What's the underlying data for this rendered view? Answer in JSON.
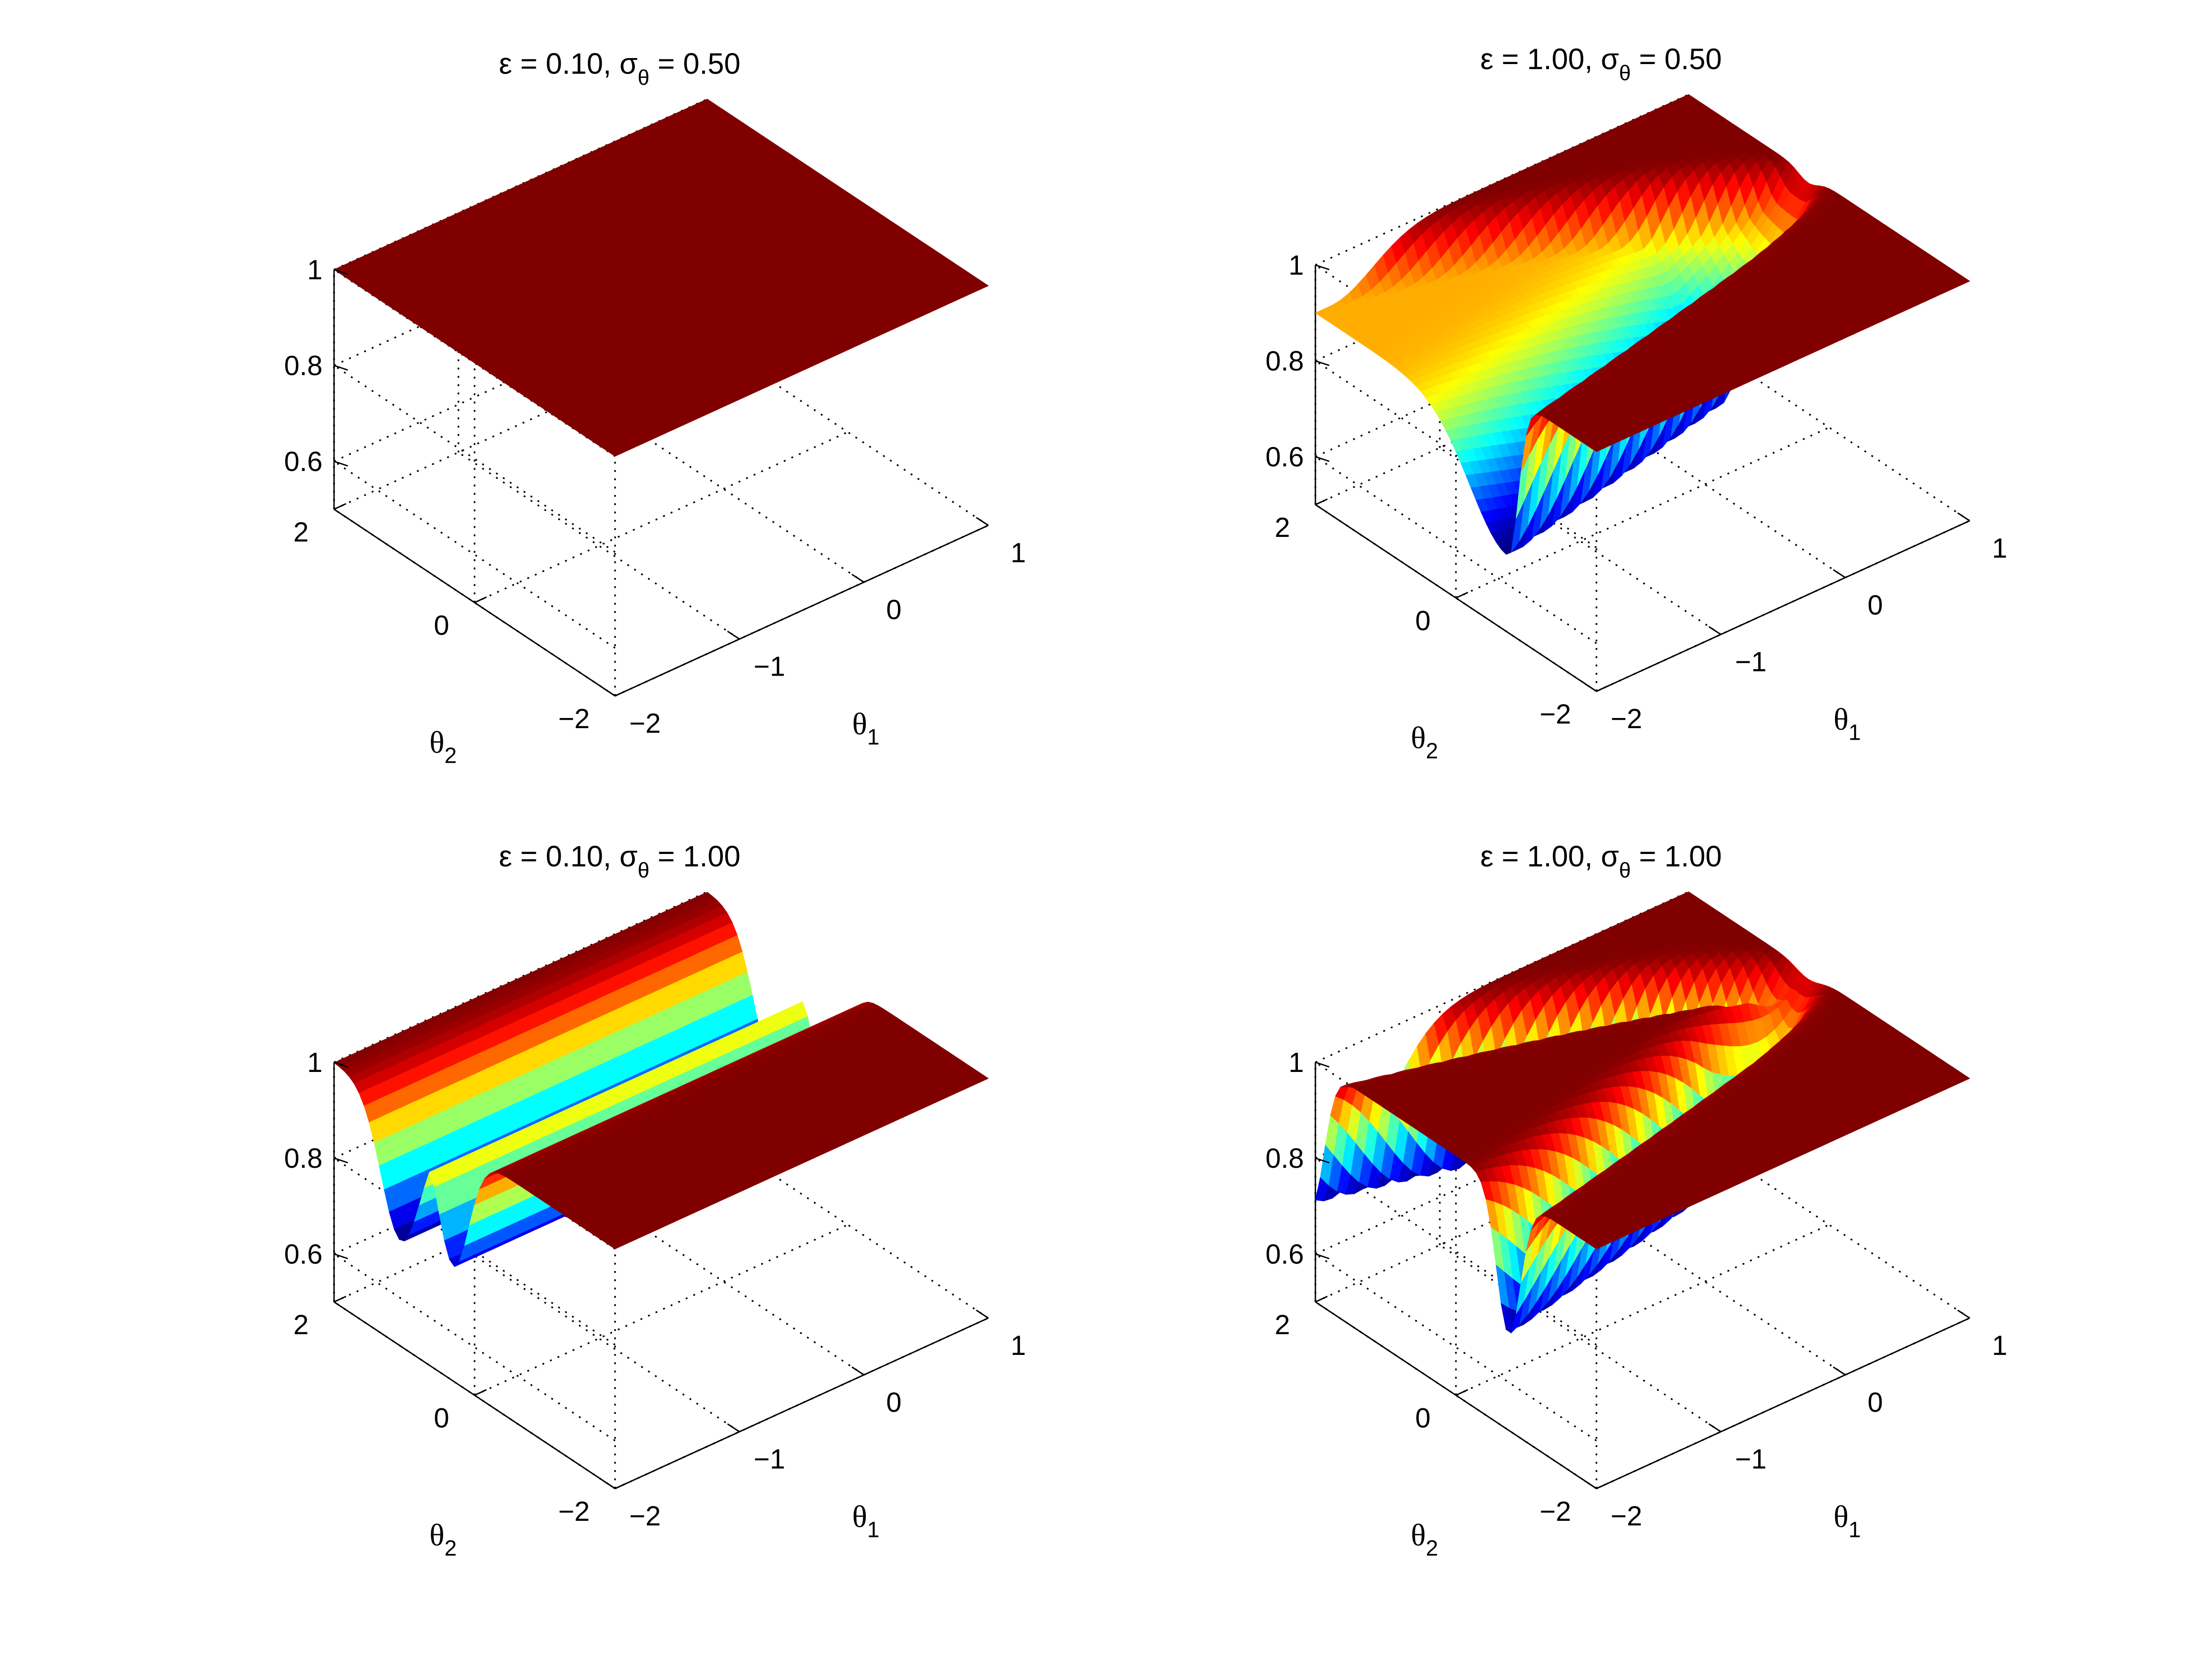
{
  "figure": {
    "colors": {
      "background": "#ffffff",
      "axis": "#000000",
      "grid": "#000000",
      "colormap": "jet",
      "flat_surface": "#800000"
    },
    "dimensions": {
      "x_symbol": "θ",
      "x_subscript": "1",
      "y_symbol": "θ",
      "y_subscript": "2"
    }
  },
  "chart_data": [
    {
      "type": "surface",
      "title": {
        "prefix": "ε = 0.10, σ",
        "subscript": "θ",
        "suffix": " = 0.50"
      },
      "x_ticks": [
        "−2",
        "−1",
        "0",
        "1"
      ],
      "y_ticks": [
        "−2",
        "0",
        "2"
      ],
      "z_ticks": [
        "0.6",
        "0.8",
        "1"
      ],
      "xlim": [
        -2,
        1
      ],
      "ylim": [
        -2,
        2
      ],
      "zlim": [
        0.5,
        1
      ],
      "grid": true,
      "pattern": "flat",
      "min_value": 1.0
    },
    {
      "type": "surface",
      "title": {
        "prefix": "ε = 1.00, σ",
        "subscript": "θ",
        "suffix": " = 0.50"
      },
      "x_ticks": [
        "−2",
        "−1",
        "0",
        "1"
      ],
      "y_ticks": [
        "−2",
        "0",
        "2"
      ],
      "z_ticks": [
        "0.6",
        "0.8",
        "1"
      ],
      "xlim": [
        -2,
        1
      ],
      "ylim": [
        -2,
        2
      ],
      "zlim": [
        0.5,
        1
      ],
      "grid": true,
      "pattern": "arc-filled",
      "min_value": 0.66
    },
    {
      "type": "surface",
      "title": {
        "prefix": "ε = 0.10, σ",
        "subscript": "θ",
        "suffix": " = 1.00"
      },
      "x_ticks": [
        "−2",
        "−1",
        "0",
        "1"
      ],
      "y_ticks": [
        "−2",
        "0",
        "2"
      ],
      "z_ticks": [
        "0.6",
        "0.8",
        "1"
      ],
      "xlim": [
        -2,
        1
      ],
      "ylim": [
        -2,
        2
      ],
      "zlim": [
        0.5,
        1
      ],
      "grid": true,
      "pattern": "double-trough",
      "min_value": 0.72
    },
    {
      "type": "surface",
      "title": {
        "prefix": "ε = 1.00, σ",
        "subscript": "θ",
        "suffix": " = 1.00"
      },
      "x_ticks": [
        "−2",
        "−1",
        "0",
        "1"
      ],
      "y_ticks": [
        "−2",
        "0",
        "2"
      ],
      "z_ticks": [
        "0.6",
        "0.8",
        "1"
      ],
      "xlim": [
        -2,
        1
      ],
      "ylim": [
        -2,
        2
      ],
      "zlim": [
        0.5,
        1
      ],
      "grid": true,
      "pattern": "arc-band",
      "min_value": 0.7
    }
  ]
}
